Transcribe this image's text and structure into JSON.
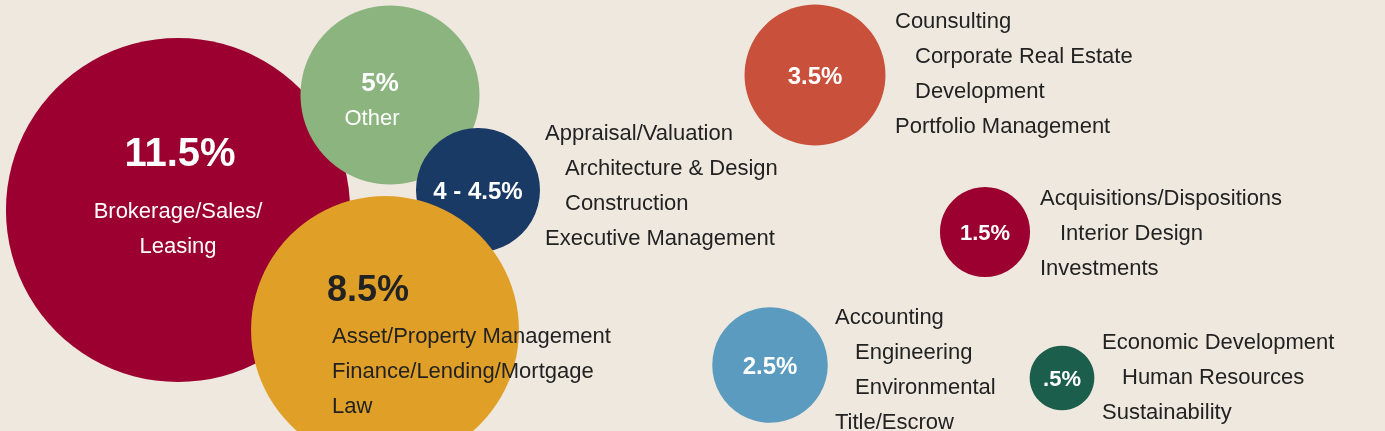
{
  "chart_data": {
    "type": "other",
    "categories": [
      "Brokerage/Sales/\nLeasing",
      "Other",
      "Appraisal/Valuation\nArchitecture & Design\nConstruction\nExecutive Management",
      "Asset/Property Management\nFinance/Lending/Mortgage\nLaw",
      "Counsulting\nCorporate Real Estate\nDevelopment\nPortfolio Management",
      "Acquisitions/Dispositions\nInterior Design\nInvestments",
      "Accounting\nEngineering\nEnvironmental\nTitle/Escrow",
      "Economic Development\nHuman Resources\nSustainability"
    ],
    "values": [
      11.5,
      5,
      null,
      8.5,
      3.5,
      1.5,
      2.5,
      0.5
    ],
    "value_labels": [
      "11.5%",
      "5%",
      "4 - 4.5%",
      "8.5%",
      "3.5%",
      "1.5%",
      "2.5%",
      ".5%"
    ],
    "colors": [
      "#9b0030",
      "#8cb47f",
      "#1a3a66",
      "#e0a028",
      "#c9503a",
      "#9b0030",
      "#5b9bbf",
      "#1b5e4c"
    ]
  }
}
